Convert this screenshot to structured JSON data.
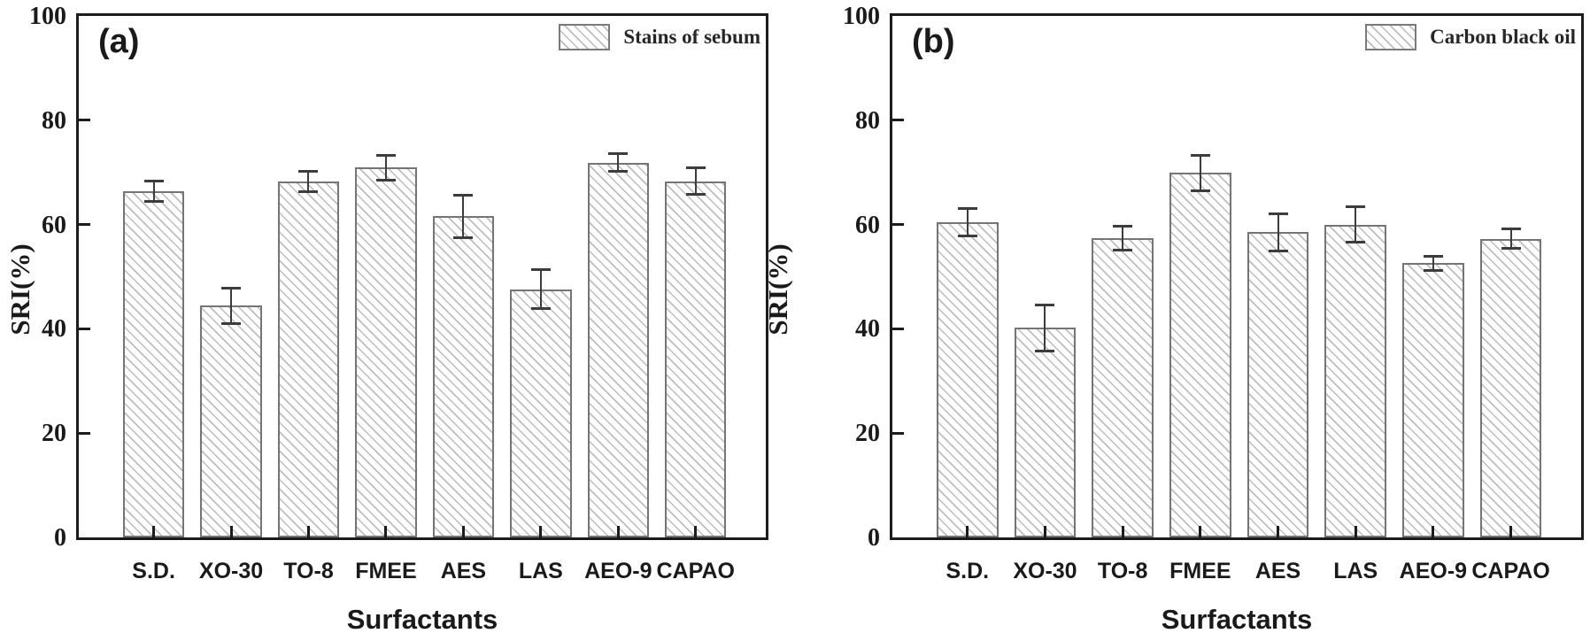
{
  "figure": {
    "background": "#ffffff",
    "axis_color": "#1c1c1c",
    "bar_border_color": "#757575",
    "bar_hatch_color": "#bdbdbd",
    "error_bar_color": "#3c3c3c",
    "text_color": "#1a1a1a"
  },
  "chart_data": [
    {
      "type": "bar",
      "panel_label": "(a)",
      "legend": "Stains of sebum",
      "legend_position": "top-right",
      "xlabel": "Surfactants",
      "ylabel": "SRI(%)",
      "ylim": [
        0,
        100
      ],
      "yticks": [
        0,
        20,
        40,
        60,
        80,
        100
      ],
      "grid": false,
      "hatch": "diagonal-backslash",
      "categories": [
        "S.D.",
        "XO-30",
        "TO-8",
        "FMEE",
        "AES",
        "LAS",
        "AEO-9",
        "CAPAO"
      ],
      "values": [
        66.4,
        44.4,
        68.3,
        70.9,
        61.6,
        47.6,
        71.9,
        68.3
      ],
      "errors": [
        2.2,
        3.7,
        2.2,
        2.6,
        4.3,
        4.0,
        2.0,
        2.8
      ]
    },
    {
      "type": "bar",
      "panel_label": "(b)",
      "legend": "Carbon black oil",
      "legend_position": "top-right",
      "xlabel": "Surfactants",
      "ylabel": "SRI(%)",
      "ylim": [
        0,
        100
      ],
      "yticks": [
        0,
        20,
        40,
        60,
        80,
        100
      ],
      "grid": false,
      "hatch": "diagonal-backslash",
      "categories": [
        "S.D.",
        "XO-30",
        "TO-8",
        "FMEE",
        "AES",
        "LAS",
        "AEO-9",
        "CAPAO"
      ],
      "values": [
        60.5,
        40.2,
        57.4,
        69.9,
        58.5,
        60.0,
        52.6,
        57.3
      ],
      "errors": [
        2.9,
        4.7,
        2.5,
        3.6,
        3.8,
        3.7,
        1.6,
        2.2
      ]
    }
  ]
}
